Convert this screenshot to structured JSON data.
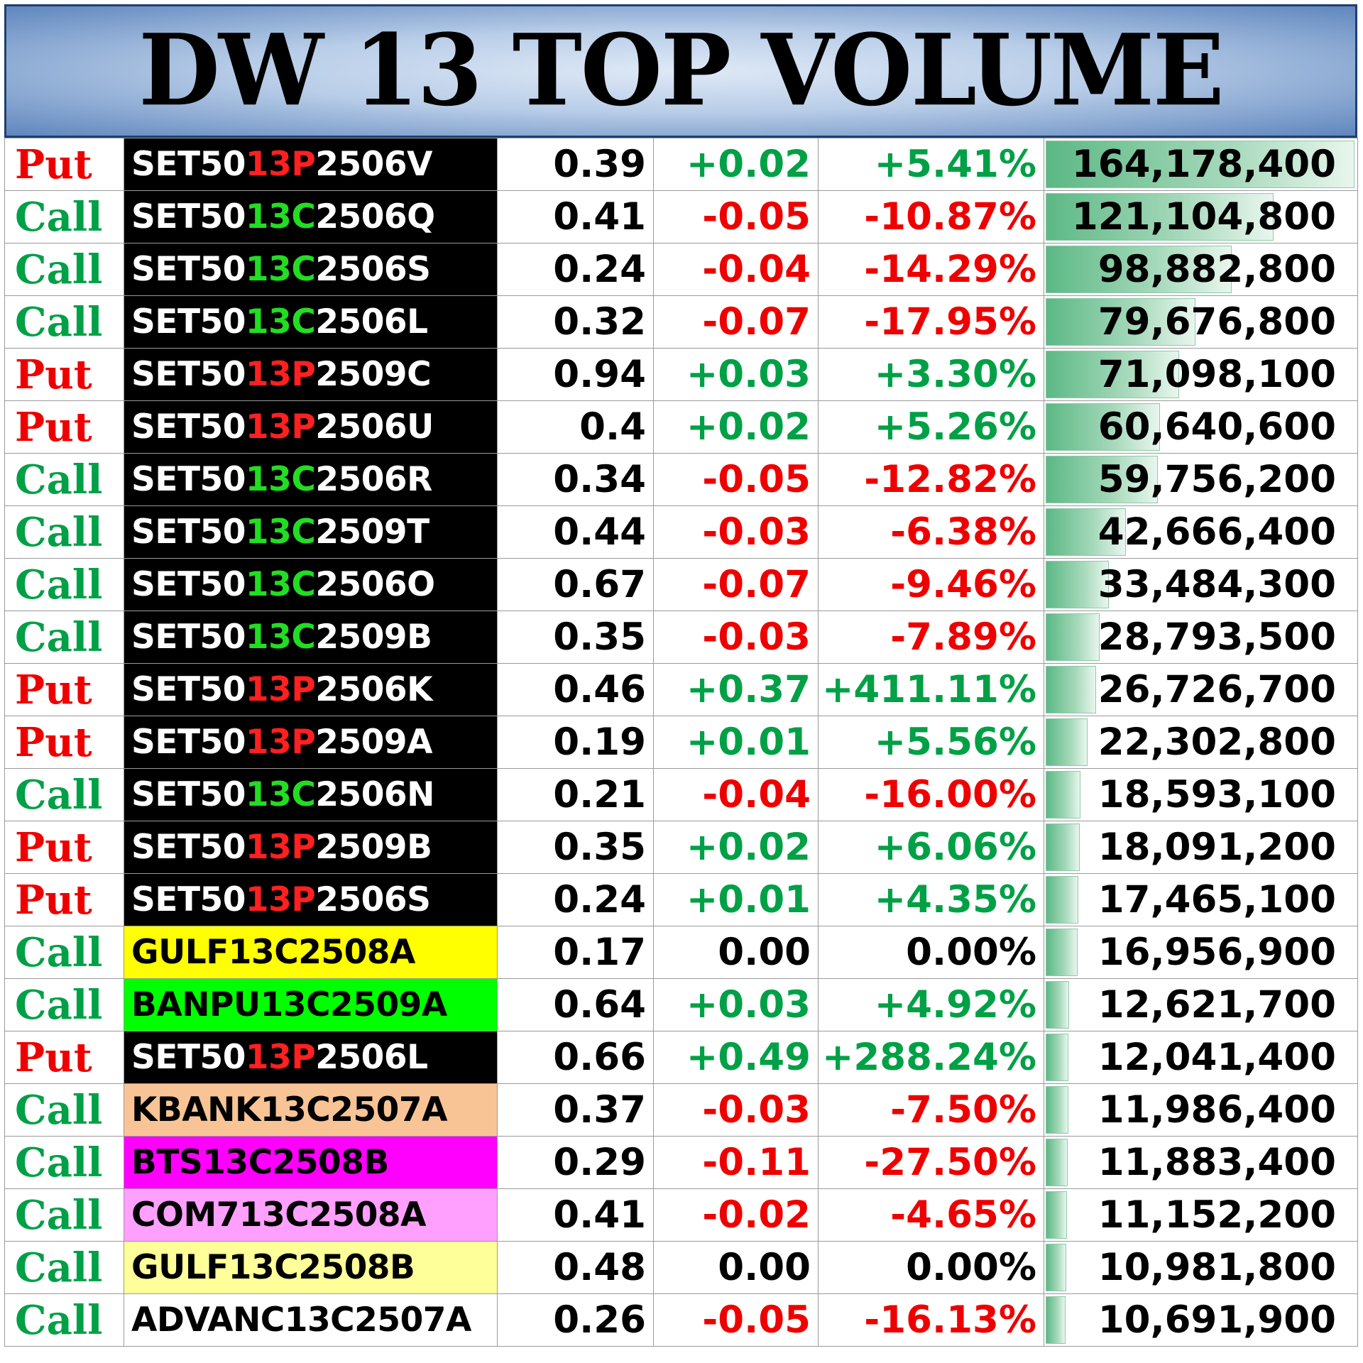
{
  "title": "DW 13 TOP VOLUME",
  "rows": [
    {
      "type": "Put",
      "pre": "SET50",
      "mid": "13P",
      "post": "2506V",
      "name": "",
      "bg": "black",
      "last": "0.39",
      "change": "+0.02",
      "pct": "+5.41%",
      "volume": "164,178,400",
      "vol_value": 164178400
    },
    {
      "type": "Call",
      "pre": "SET50",
      "mid": "13C",
      "post": "2506Q",
      "name": "",
      "bg": "black",
      "last": "0.41",
      "change": "-0.05",
      "pct": "-10.87%",
      "volume": "121,104,800",
      "vol_value": 121104800
    },
    {
      "type": "Call",
      "pre": "SET50",
      "mid": "13C",
      "post": "2506S",
      "name": "",
      "bg": "black",
      "last": "0.24",
      "change": "-0.04",
      "pct": "-14.29%",
      "volume": "98,882,800",
      "vol_value": 98882800
    },
    {
      "type": "Call",
      "pre": "SET50",
      "mid": "13C",
      "post": "2506L",
      "name": "",
      "bg": "black",
      "last": "0.32",
      "change": "-0.07",
      "pct": "-17.95%",
      "volume": "79,676,800",
      "vol_value": 79676800
    },
    {
      "type": "Put",
      "pre": "SET50",
      "mid": "13P",
      "post": "2509C",
      "name": "",
      "bg": "black",
      "last": "0.94",
      "change": "+0.03",
      "pct": "+3.30%",
      "volume": "71,098,100",
      "vol_value": 71098100
    },
    {
      "type": "Put",
      "pre": "SET50",
      "mid": "13P",
      "post": "2506U",
      "name": "",
      "bg": "black",
      "last": "0.4",
      "change": "+0.02",
      "pct": "+5.26%",
      "volume": "60,640,600",
      "vol_value": 60640600
    },
    {
      "type": "Call",
      "pre": "SET50",
      "mid": "13C",
      "post": "2506R",
      "name": "",
      "bg": "black",
      "last": "0.34",
      "change": "-0.05",
      "pct": "-12.82%",
      "volume": "59,756,200",
      "vol_value": 59756200
    },
    {
      "type": "Call",
      "pre": "SET50",
      "mid": "13C",
      "post": "2509T",
      "name": "",
      "bg": "black",
      "last": "0.44",
      "change": "-0.03",
      "pct": "-6.38%",
      "volume": "42,666,400",
      "vol_value": 42666400
    },
    {
      "type": "Call",
      "pre": "SET50",
      "mid": "13C",
      "post": "2506O",
      "name": "",
      "bg": "black",
      "last": "0.67",
      "change": "-0.07",
      "pct": "-9.46%",
      "volume": "33,484,300",
      "vol_value": 33484300
    },
    {
      "type": "Call",
      "pre": "SET50",
      "mid": "13C",
      "post": "2509B",
      "name": "",
      "bg": "black",
      "last": "0.35",
      "change": "-0.03",
      "pct": "-7.89%",
      "volume": "28,793,500",
      "vol_value": 28793500
    },
    {
      "type": "Put",
      "pre": "SET50",
      "mid": "13P",
      "post": "2506K",
      "name": "",
      "bg": "black",
      "last": "0.46",
      "change": "+0.37",
      "pct": "+411.11%",
      "volume": "26,726,700",
      "vol_value": 26726700
    },
    {
      "type": "Put",
      "pre": "SET50",
      "mid": "13P",
      "post": "2509A",
      "name": "",
      "bg": "black",
      "last": "0.19",
      "change": "+0.01",
      "pct": "+5.56%",
      "volume": "22,302,800",
      "vol_value": 22302800
    },
    {
      "type": "Call",
      "pre": "SET50",
      "mid": "13C",
      "post": "2506N",
      "name": "",
      "bg": "black",
      "last": "0.21",
      "change": "-0.04",
      "pct": "-16.00%",
      "volume": "18,593,100",
      "vol_value": 18593100
    },
    {
      "type": "Put",
      "pre": "SET50",
      "mid": "13P",
      "post": "2509B",
      "name": "",
      "bg": "black",
      "last": "0.35",
      "change": "+0.02",
      "pct": "+6.06%",
      "volume": "18,091,200",
      "vol_value": 18091200
    },
    {
      "type": "Put",
      "pre": "SET50",
      "mid": "13P",
      "post": "2506S",
      "name": "",
      "bg": "black",
      "last": "0.24",
      "change": "+0.01",
      "pct": "+4.35%",
      "volume": "17,465,100",
      "vol_value": 17465100
    },
    {
      "type": "Call",
      "pre": "",
      "mid": "",
      "post": "",
      "name": "GULF13C2508A",
      "bg": "#ffff00",
      "last": "0.17",
      "change": "0.00",
      "pct": "0.00%",
      "volume": "16,956,900",
      "vol_value": 16956900
    },
    {
      "type": "Call",
      "pre": "",
      "mid": "",
      "post": "",
      "name": "BANPU13C2509A",
      "bg": "#00ff00",
      "last": "0.64",
      "change": "+0.03",
      "pct": "+4.92%",
      "volume": "12,621,700",
      "vol_value": 12621700
    },
    {
      "type": "Put",
      "pre": "SET50",
      "mid": "13P",
      "post": "2506L",
      "name": "",
      "bg": "black",
      "last": "0.66",
      "change": "+0.49",
      "pct": "+288.24%",
      "volume": "12,041,400",
      "vol_value": 12041400
    },
    {
      "type": "Call",
      "pre": "",
      "mid": "",
      "post": "",
      "name": "KBANK13C2507A",
      "bg": "#f8c496",
      "last": "0.37",
      "change": "-0.03",
      "pct": "-7.50%",
      "volume": "11,986,400",
      "vol_value": 11986400
    },
    {
      "type": "Call",
      "pre": "",
      "mid": "",
      "post": "",
      "name": "BTS13C2508B",
      "bg": "#ff00ff",
      "last": "0.29",
      "change": "-0.11",
      "pct": "-27.50%",
      "volume": "11,883,400",
      "vol_value": 11883400
    },
    {
      "type": "Call",
      "pre": "",
      "mid": "",
      "post": "",
      "name": "COM713C2508A",
      "bg": "#ffa0ff",
      "last": "0.41",
      "change": "-0.02",
      "pct": "-4.65%",
      "volume": "11,152,200",
      "vol_value": 11152200
    },
    {
      "type": "Call",
      "pre": "",
      "mid": "",
      "post": "",
      "name": "GULF13C2508B",
      "bg": "#ffff99",
      "last": "0.48",
      "change": "0.00",
      "pct": "0.00%",
      "volume": "10,981,800",
      "vol_value": 10981800
    },
    {
      "type": "Call",
      "pre": "",
      "mid": "",
      "post": "",
      "name": "ADVANC13C2507A",
      "bg": "#ffffff",
      "last": "0.26",
      "change": "-0.05",
      "pct": "-16.13%",
      "volume": "10,691,900",
      "vol_value": 10691900
    }
  ],
  "colors": {
    "put": "#ee0000",
    "call": "#00a046",
    "positive": "#00a046",
    "negative": "#ee0000",
    "bar": "#5cb885"
  }
}
